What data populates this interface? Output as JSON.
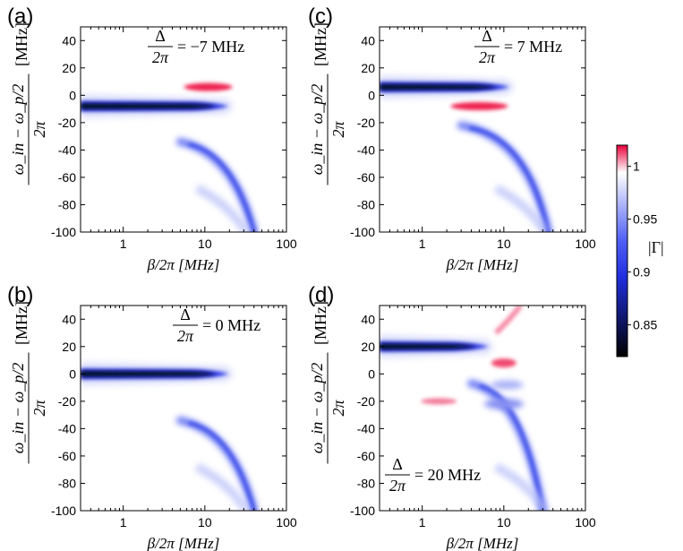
{
  "chart_data": {
    "type": "heatmap",
    "colorbar": {
      "label": "|Γ|",
      "ticks": [
        "1",
        "0.95",
        "0.9",
        "0.85"
      ],
      "tick_values": [
        1,
        0.95,
        0.9,
        0.85
      ],
      "range": [
        0.82,
        1.02
      ],
      "colors": {
        "low": "#000000",
        "mid": "#2d3df0",
        "one": "#ffffff",
        "high": "#e8003a"
      }
    },
    "panels": [
      {
        "label": "(a)",
        "annotation_frac": "Δ",
        "annotation_den": "2π",
        "annotation_value": "= −7 MHz",
        "delta_mhz": -7,
        "xlabel": "β/2π [MHz]",
        "ylabel_top": "ω_in − ω_p/2",
        "ylabel_bottom": "2π",
        "ylabel_unit": "[MHz]",
        "xticks": [
          "1",
          "10",
          "100"
        ],
        "xtick_values": [
          1,
          10,
          100
        ],
        "yticks": [
          "40",
          "20",
          "0",
          "-20",
          "-40",
          "-60",
          "-80",
          "-100"
        ],
        "ytick_values": [
          40,
          20,
          0,
          -20,
          -40,
          -60,
          -80,
          -100
        ],
        "xlim": [
          0.3,
          100
        ],
        "ylim": [
          -100,
          50
        ]
      },
      {
        "label": "(c)",
        "annotation_frac": "Δ",
        "annotation_den": "2π",
        "annotation_value": "= 7 MHz",
        "delta_mhz": 7,
        "xlabel": "β/2π [MHz]",
        "ylabel_top": "ω_in − ω_p/2",
        "ylabel_bottom": "2π",
        "ylabel_unit": "[MHz]",
        "xticks": [
          "1",
          "10",
          "100"
        ],
        "xtick_values": [
          1,
          10,
          100
        ],
        "yticks": [
          "40",
          "20",
          "0",
          "-20",
          "-40",
          "-60",
          "-80",
          "-100"
        ],
        "ytick_values": [
          40,
          20,
          0,
          -20,
          -40,
          -60,
          -80,
          -100
        ],
        "xlim": [
          0.3,
          100
        ],
        "ylim": [
          -100,
          50
        ]
      },
      {
        "label": "(b)",
        "annotation_frac": "Δ",
        "annotation_den": "2π",
        "annotation_value": "= 0 MHz",
        "delta_mhz": 0,
        "xlabel": "β/2π [MHz]",
        "ylabel_top": "ω_in − ω_p/2",
        "ylabel_bottom": "2π",
        "ylabel_unit": "[MHz]",
        "xticks": [
          "1",
          "10",
          "100"
        ],
        "xtick_values": [
          1,
          10,
          100
        ],
        "yticks": [
          "40",
          "20",
          "0",
          "-20",
          "-40",
          "-60",
          "-80",
          "-100"
        ],
        "ytick_values": [
          40,
          20,
          0,
          -20,
          -40,
          -60,
          -80,
          -100
        ],
        "xlim": [
          0.3,
          100
        ],
        "ylim": [
          -100,
          50
        ]
      },
      {
        "label": "(d)",
        "annotation_frac": "Δ",
        "annotation_den": "2π",
        "annotation_value": "= 20 MHz",
        "delta_mhz": 20,
        "xlabel": "β/2π [MHz]",
        "ylabel_top": "ω_in − ω_p/2",
        "ylabel_bottom": "2π",
        "ylabel_unit": "[MHz]",
        "xticks": [
          "1",
          "10",
          "100"
        ],
        "xtick_values": [
          1,
          10,
          100
        ],
        "yticks": [
          "40",
          "20",
          "0",
          "-20",
          "-40",
          "-60",
          "-80",
          "-100"
        ],
        "ytick_values": [
          40,
          20,
          0,
          -20,
          -40,
          -60,
          -80,
          -100
        ],
        "xlim": [
          0.3,
          100
        ],
        "ylim": [
          -100,
          50
        ]
      }
    ]
  }
}
